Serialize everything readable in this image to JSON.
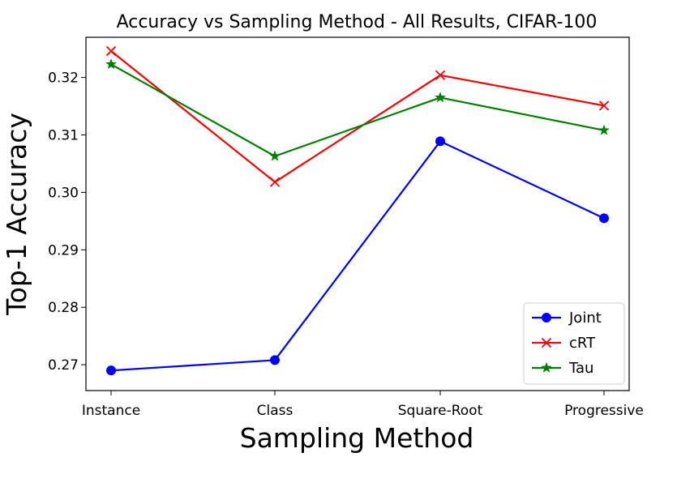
{
  "chart_data": {
    "type": "line",
    "title": "Accuracy vs Sampling Method - All Results, CIFAR-100",
    "xlabel": "Sampling Method",
    "ylabel": "Top-1 Accuracy",
    "categories": [
      "Instance",
      "Class",
      "Square-Root",
      "Progressive"
    ],
    "ylim": [
      0.2655,
      0.327
    ],
    "yticks": [
      "0.27",
      "0.28",
      "0.29",
      "0.30",
      "0.31",
      "0.32"
    ],
    "legend_position": "lower-right",
    "grid": false,
    "series": [
      {
        "name": "Joint",
        "color": "#0000ff",
        "marker": "circle",
        "values": [
          0.269,
          0.2708,
          0.3089,
          0.2955
        ]
      },
      {
        "name": "cRT",
        "color": "#ff0000",
        "marker": "x",
        "values": [
          0.3246,
          0.3018,
          0.3204,
          0.3151
        ]
      },
      {
        "name": "Tau",
        "color": "#008000",
        "marker": "star",
        "values": [
          0.3223,
          0.3063,
          0.3165,
          0.3108
        ]
      }
    ]
  }
}
